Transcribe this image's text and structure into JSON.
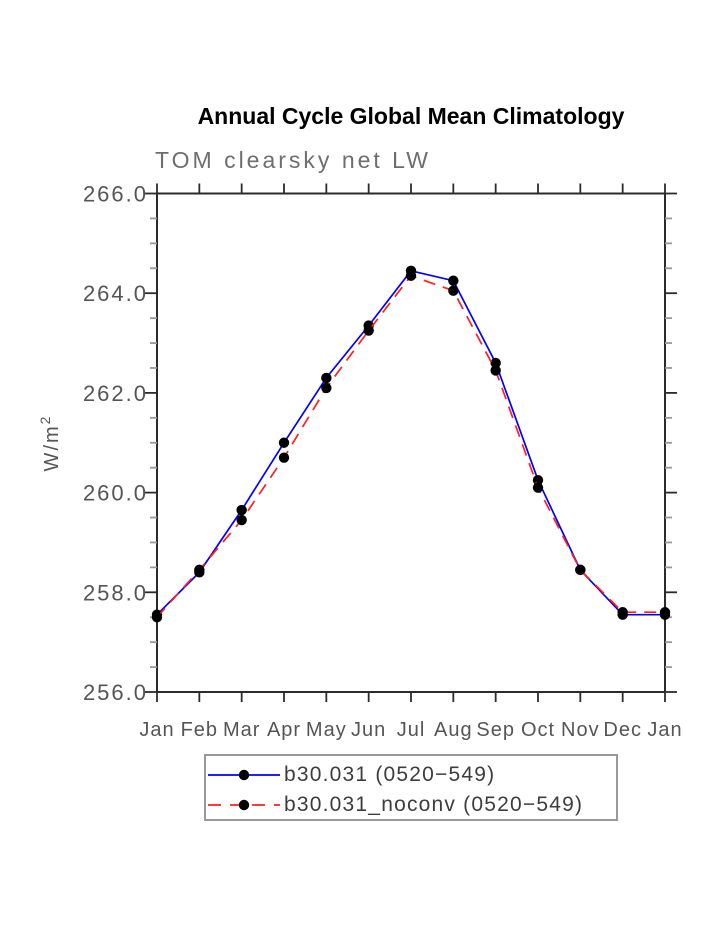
{
  "chart_data": {
    "type": "line",
    "title": "Annual Cycle Global Mean Climatology",
    "subtitle": "TOM clearsky net LW",
    "ylabel": "W/m²",
    "ylabel_base": "W/m",
    "ylabel_exp": "2",
    "xlabel": "",
    "categories": [
      "Jan",
      "Feb",
      "Mar",
      "Apr",
      "May",
      "Jun",
      "Jul",
      "Aug",
      "Sep",
      "Oct",
      "Nov",
      "Dec",
      "Jan"
    ],
    "ylim": [
      256.0,
      266.0
    ],
    "ytick_interval": 2.0,
    "yminor_interval": 0.5,
    "ytick_labels": [
      "256.0",
      "258.0",
      "260.0",
      "262.0",
      "264.0",
      "266.0"
    ],
    "grid": false,
    "legend_position": "bottom-box",
    "series": [
      {
        "name": "b30.031 (0520−549)",
        "color": "#0000ff",
        "line_style": "solid",
        "marker": "filled-circle",
        "marker_color": "#000000",
        "values": [
          257.55,
          258.4,
          259.65,
          261.0,
          262.3,
          263.35,
          264.45,
          264.25,
          262.6,
          260.25,
          258.45,
          257.55,
          257.55
        ]
      },
      {
        "name": "b30.031_noconv (0520−549)",
        "color": "#ff2020",
        "line_style": "dashed",
        "marker": "filled-circle",
        "marker_color": "#000000",
        "values": [
          257.5,
          258.45,
          259.45,
          260.7,
          262.1,
          263.25,
          264.35,
          264.05,
          262.45,
          260.1,
          258.45,
          257.6,
          257.6
        ]
      }
    ]
  },
  "colors": {
    "background": "#ffffff",
    "title": "#000000",
    "subtitle": "#6e6e6e",
    "tick_label": "#555555",
    "axis": "#2b2b2b",
    "minor_tick": "#999999",
    "legend_border": "#999999",
    "legend_text": "#3d3d3d"
  }
}
